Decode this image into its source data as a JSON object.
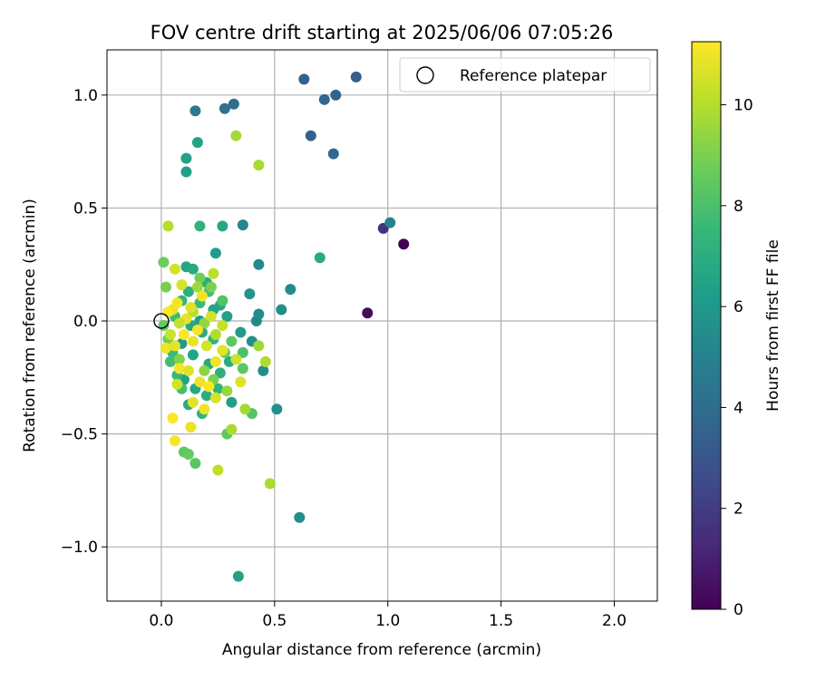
{
  "chart_data": {
    "type": "scatter",
    "title": "FOV centre drift starting at 2025/06/06 07:05:26",
    "xlabel": "Angular distance from reference (arcmin)",
    "ylabel": "Rotation from reference (arcmin)",
    "xlim": [
      -0.24,
      2.19
    ],
    "ylim": [
      -1.24,
      1.2
    ],
    "xticks": [
      0.0,
      0.5,
      1.0,
      1.5,
      2.0
    ],
    "xtick_labels": [
      "0.0",
      "0.5",
      "1.0",
      "1.5",
      "2.0"
    ],
    "yticks": [
      -1.0,
      -0.5,
      0.0,
      0.5,
      1.0
    ],
    "ytick_labels": [
      "−1.0",
      "−0.5",
      "0.0",
      "0.5",
      "1.0"
    ],
    "grid": true,
    "legend": {
      "position": "top-right",
      "label": "Reference platepar"
    },
    "reference_point": {
      "x": 0.0,
      "y": 0.0
    },
    "colorbar": {
      "label": "Hours from first FF file",
      "range": [
        0,
        11.25
      ],
      "ticks": [
        0,
        2,
        4,
        6,
        8,
        10
      ],
      "tick_labels": [
        "0",
        "2",
        "4",
        "6",
        "8",
        "10"
      ],
      "colormap": "viridis"
    },
    "points": [
      [
        1.07,
        0.34,
        0.0
      ],
      [
        0.91,
        0.035,
        0.3
      ],
      [
        0.98,
        0.41,
        1.6
      ],
      [
        0.86,
        1.08,
        3.3
      ],
      [
        0.63,
        1.07,
        3.5
      ],
      [
        0.77,
        1.0,
        3.6
      ],
      [
        0.72,
        0.98,
        3.7
      ],
      [
        0.32,
        0.96,
        4.0
      ],
      [
        0.28,
        0.94,
        4.2
      ],
      [
        0.66,
        0.82,
        3.4
      ],
      [
        0.76,
        0.74,
        3.9
      ],
      [
        0.15,
        0.93,
        4.6
      ],
      [
        1.01,
        0.435,
        5.0
      ],
      [
        0.36,
        0.425,
        5.2
      ],
      [
        0.43,
        0.25,
        5.3
      ],
      [
        0.57,
        0.14,
        5.4
      ],
      [
        0.53,
        0.05,
        5.5
      ],
      [
        0.42,
        0.0,
        5.3
      ],
      [
        0.43,
        0.03,
        5.5
      ],
      [
        0.61,
        -0.87,
        5.6
      ],
      [
        0.51,
        -0.39,
        5.6
      ],
      [
        0.45,
        -0.22,
        5.5
      ],
      [
        0.4,
        -0.09,
        5.6
      ],
      [
        0.39,
        0.12,
        5.8
      ],
      [
        0.16,
        0.79,
        6.5
      ],
      [
        0.11,
        0.72,
        6.4
      ],
      [
        0.11,
        0.66,
        6.3
      ],
      [
        0.7,
        0.28,
        6.9
      ],
      [
        0.24,
        0.3,
        6.2
      ],
      [
        0.34,
        -1.13,
        6.4
      ],
      [
        0.31,
        -0.36,
        6.3
      ],
      [
        0.27,
        0.42,
        6.7
      ],
      [
        0.17,
        0.42,
        7.2
      ],
      [
        0.11,
        0.24,
        6.6
      ],
      [
        0.14,
        0.23,
        6.8
      ],
      [
        0.2,
        0.17,
        7.0
      ],
      [
        0.26,
        0.07,
        6.8
      ],
      [
        0.29,
        0.02,
        6.4
      ],
      [
        0.23,
        0.05,
        6.6
      ],
      [
        0.17,
        0.0,
        6.3
      ],
      [
        0.13,
        -0.02,
        6.7
      ],
      [
        0.18,
        -0.05,
        6.9
      ],
      [
        0.23,
        -0.08,
        7.2
      ],
      [
        0.35,
        -0.05,
        6.2
      ],
      [
        0.09,
        -0.1,
        6.1
      ],
      [
        0.14,
        -0.15,
        6.6
      ],
      [
        0.21,
        -0.19,
        6.8
      ],
      [
        0.26,
        -0.23,
        7.1
      ],
      [
        0.3,
        -0.18,
        6.9
      ],
      [
        0.1,
        -0.26,
        6.4
      ],
      [
        0.15,
        -0.3,
        6.7
      ],
      [
        0.2,
        -0.33,
        7.0
      ],
      [
        0.25,
        -0.3,
        7.3
      ],
      [
        0.12,
        -0.37,
        6.9
      ],
      [
        0.18,
        -0.41,
        7.4
      ],
      [
        0.05,
        -0.14,
        7.6
      ],
      [
        0.04,
        -0.18,
        7.8
      ],
      [
        0.07,
        -0.24,
        7.5
      ],
      [
        0.09,
        -0.3,
        7.9
      ],
      [
        0.06,
        0.02,
        7.7
      ],
      [
        0.09,
        0.09,
        7.4
      ],
      [
        0.12,
        0.13,
        7.1
      ],
      [
        0.17,
        0.08,
        7.6
      ],
      [
        0.21,
        0.13,
        7.9
      ],
      [
        0.27,
        0.09,
        8.2
      ],
      [
        0.31,
        -0.09,
        8.4
      ],
      [
        0.28,
        -0.14,
        8.6
      ],
      [
        0.36,
        -0.14,
        8.0
      ],
      [
        0.36,
        -0.21,
        8.3
      ],
      [
        0.4,
        -0.41,
        8.2
      ],
      [
        0.29,
        -0.5,
        8.4
      ],
      [
        0.1,
        -0.58,
        8.4
      ],
      [
        0.12,
        -0.59,
        8.6
      ],
      [
        0.15,
        -0.63,
        8.3
      ],
      [
        0.02,
        0.15,
        8.9
      ],
      [
        0.01,
        0.26,
        8.7
      ],
      [
        0.17,
        0.19,
        8.8
      ],
      [
        0.22,
        0.15,
        9.0
      ],
      [
        0.01,
        -0.02,
        8.5
      ],
      [
        0.03,
        -0.08,
        8.8
      ],
      [
        0.08,
        -0.17,
        9.1
      ],
      [
        0.19,
        -0.22,
        9.3
      ],
      [
        0.23,
        -0.26,
        9.0
      ],
      [
        0.29,
        -0.31,
        9.5
      ],
      [
        0.37,
        -0.39,
        9.7
      ],
      [
        0.31,
        -0.48,
        9.8
      ],
      [
        0.43,
        -0.11,
        9.6
      ],
      [
        0.46,
        -0.18,
        9.9
      ],
      [
        0.48,
        -0.72,
        9.8
      ],
      [
        0.25,
        -0.66,
        10.2
      ],
      [
        0.33,
        0.82,
        9.7
      ],
      [
        0.43,
        0.69,
        9.8
      ],
      [
        0.03,
        0.42,
        10.0
      ],
      [
        0.14,
        0.04,
        10.0
      ],
      [
        0.19,
        -0.01,
        9.4
      ],
      [
        0.24,
        -0.06,
        9.9
      ],
      [
        0.16,
        0.15,
        9.6
      ],
      [
        0.27,
        -0.02,
        10.3
      ],
      [
        0.23,
        0.21,
        10.1
      ],
      [
        0.06,
        0.23,
        10.5
      ],
      [
        0.09,
        0.16,
        10.6
      ],
      [
        0.05,
        0.05,
        10.8
      ],
      [
        0.07,
        0.08,
        11.1
      ],
      [
        0.11,
        0.01,
        10.9
      ],
      [
        0.13,
        0.06,
        10.7
      ],
      [
        0.18,
        0.11,
        11.0
      ],
      [
        0.22,
        0.02,
        10.5
      ],
      [
        0.04,
        -0.06,
        10.4
      ],
      [
        0.02,
        -0.12,
        11.0
      ],
      [
        0.06,
        -0.11,
        10.8
      ],
      [
        0.1,
        -0.06,
        11.2
      ],
      [
        0.14,
        -0.09,
        10.9
      ],
      [
        0.16,
        -0.04,
        11.1
      ],
      [
        0.2,
        -0.11,
        10.6
      ],
      [
        0.24,
        -0.18,
        11.0
      ],
      [
        0.27,
        -0.13,
        10.8
      ],
      [
        0.08,
        -0.21,
        11.1
      ],
      [
        0.12,
        -0.22,
        10.7
      ],
      [
        0.17,
        -0.27,
        10.9
      ],
      [
        0.21,
        -0.29,
        11.2
      ],
      [
        0.07,
        -0.28,
        10.5
      ],
      [
        0.14,
        -0.36,
        10.8
      ],
      [
        0.19,
        -0.39,
        11.0
      ],
      [
        0.24,
        -0.34,
        10.6
      ],
      [
        0.05,
        -0.43,
        11.2
      ],
      [
        0.13,
        -0.47,
        10.9
      ],
      [
        0.06,
        -0.53,
        11.1
      ],
      [
        0.33,
        -0.17,
        10.4
      ],
      [
        0.35,
        -0.27,
        10.7
      ],
      [
        0.03,
        0.04,
        11.2
      ],
      [
        0.08,
        -0.01,
        10.3
      ]
    ]
  }
}
